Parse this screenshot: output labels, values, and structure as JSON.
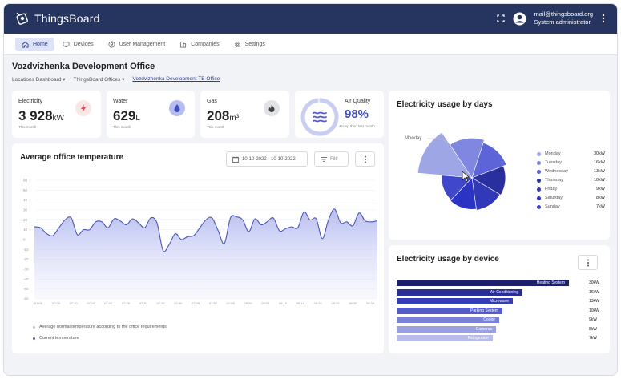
{
  "app": {
    "name": "ThingsBoard"
  },
  "user": {
    "email": "mail@thingsboard.org",
    "role": "System administrator"
  },
  "nav": [
    {
      "label": "Home",
      "icon": "home-icon",
      "active": true
    },
    {
      "label": "Devices",
      "icon": "devices-icon"
    },
    {
      "label": "User Management",
      "icon": "user-icon"
    },
    {
      "label": "Companies",
      "icon": "companies-icon"
    },
    {
      "label": "Settings",
      "icon": "gear-icon"
    }
  ],
  "page": {
    "title": "Vozdvizhenka Development Office"
  },
  "breadcrumb": [
    "Locations Dashboard",
    "ThingsBoard Offices",
    "Vozdvizhenka Development TB Office"
  ],
  "metrics": {
    "electricity": {
      "label": "Electricity",
      "value": "3 928",
      "unit": "kW",
      "sub": "This month",
      "icon": "bolt-icon",
      "color": "#e04a4a"
    },
    "water": {
      "label": "Water",
      "value": "629",
      "unit": "L",
      "sub": "This month",
      "icon": "drop-icon",
      "color": "#3d4fc0"
    },
    "gas": {
      "label": "Gas",
      "value": "208",
      "unit": "m³",
      "sub": "This month",
      "icon": "flame-icon",
      "color": "#444444"
    },
    "air": {
      "label": "Air Quality",
      "value": "98%",
      "sub": "4% up than last month",
      "icon": "wind-icon",
      "color": "#4c5bd4"
    }
  },
  "temperature": {
    "title": "Average office temperature",
    "date_range": "10-10-2022 - 10-10-2022",
    "filter_label": "Filtr",
    "legend": [
      "Average normal temperature according to the office requirements",
      "Current temperature"
    ]
  },
  "pie_card": {
    "title": "Electricity usage by days",
    "callout": "Monday"
  },
  "bar_card": {
    "title": "Electricity usage by device"
  },
  "chart_data": [
    {
      "type": "area",
      "title": "Average office temperature",
      "ylim": [
        -60,
        60
      ],
      "y_ticks": [
        "60",
        "50",
        "40",
        "30",
        "20",
        "10",
        "0",
        "-10",
        "-20",
        "-30",
        "-40",
        "-50",
        "-60"
      ],
      "x_ticks": [
        "07:00",
        "07:05",
        "07:10",
        "07:15",
        "07:20",
        "07:25",
        "07:30",
        "07:35",
        "07:40",
        "07:45",
        "07:50",
        "07:55",
        "08:00",
        "08:05",
        "08:10",
        "08:15",
        "08:20",
        "08:25",
        "08:30",
        "08:35"
      ],
      "series": [
        {
          "name": "Current temperature",
          "values": [
            13,
            12,
            6,
            4,
            12,
            20,
            22,
            5,
            10,
            10,
            18,
            18,
            12,
            21,
            19,
            15,
            21,
            17,
            12,
            22,
            17,
            -11,
            -5,
            6,
            0,
            3,
            4,
            12,
            20,
            22,
            9,
            -4,
            22,
            23,
            20,
            8,
            21,
            15,
            18,
            22,
            9,
            11,
            13,
            12,
            28,
            20,
            21,
            1,
            20,
            31,
            17,
            18,
            14,
            27,
            19,
            18,
            19
          ]
        },
        {
          "name": "Average normal temperature according to the office requirements",
          "values": [
            20
          ]
        }
      ]
    },
    {
      "type": "pie",
      "title": "Electricity usage by days",
      "categories": [
        "Monday",
        "Tuesday",
        "Wednesday",
        "Thursday",
        "Friday",
        "Saturday",
        "Sunday"
      ],
      "values": [
        30,
        16,
        13,
        10,
        9,
        8,
        7
      ],
      "value_labels": [
        "30kW",
        "16kW",
        "13kW",
        "10kW",
        "9kW",
        "8kW",
        "7kW"
      ],
      "colors": [
        "#9fa6e6",
        "#7f87e0",
        "#5c64d8",
        "#2a2f9f",
        "#3239b8",
        "#2b33c4",
        "#4047cc"
      ]
    },
    {
      "type": "bar",
      "title": "Electricity usage by device",
      "categories": [
        "Heating System",
        "Air Conditioning",
        "Microwave",
        "Parking System",
        "Cooler",
        "Cameras",
        "Refrigerator"
      ],
      "values": [
        30,
        16,
        13,
        10,
        9,
        8,
        7
      ],
      "value_labels": [
        "30kW",
        "16kW",
        "13kW",
        "10kW",
        "9kW",
        "8kW",
        "7kW"
      ],
      "colors": [
        "#1a1f6e",
        "#282f99",
        "#343cb8",
        "#555cc9",
        "#7b82d6",
        "#9aa0e0",
        "#b8bcea"
      ]
    }
  ]
}
